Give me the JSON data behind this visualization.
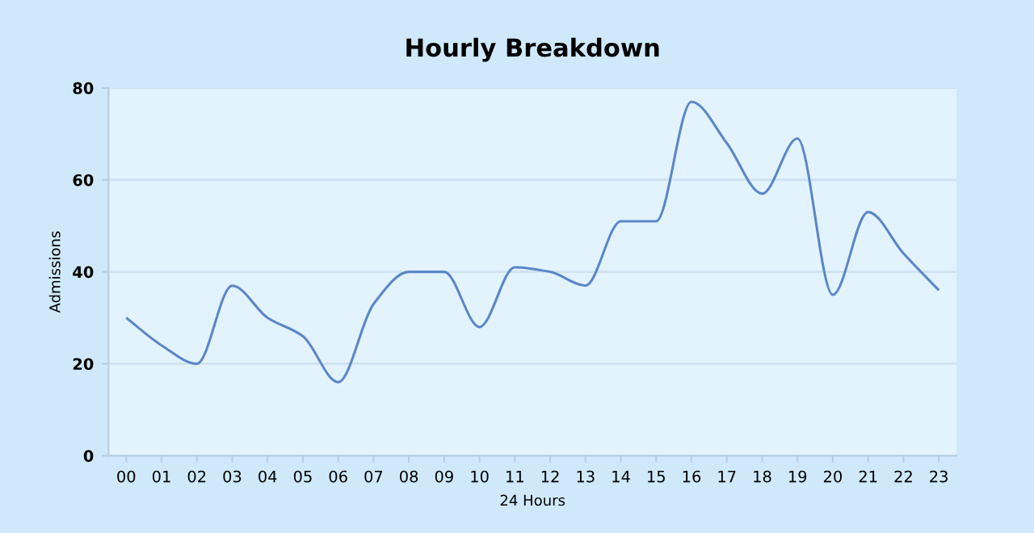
{
  "chart_data": {
    "type": "line",
    "title": "Hourly Breakdown",
    "xlabel": "24 Hours",
    "ylabel": "Admissions",
    "categories": [
      "00",
      "01",
      "02",
      "03",
      "04",
      "05",
      "06",
      "07",
      "08",
      "09",
      "10",
      "11",
      "12",
      "13",
      "14",
      "15",
      "16",
      "17",
      "18",
      "19",
      "20",
      "21",
      "22",
      "23"
    ],
    "series": [
      {
        "color": "#5b86c8",
        "values": [
          30,
          24,
          20,
          37,
          30,
          26,
          16,
          33,
          40,
          40,
          28,
          41,
          40,
          37,
          51,
          51,
          77,
          68,
          57,
          69,
          35,
          53,
          44,
          36
        ]
      }
    ],
    "ylim": [
      0,
      80
    ],
    "yticks": [
      0,
      20,
      40,
      60,
      80
    ],
    "grid": "y",
    "legend": false,
    "marker": "none",
    "line_style": "solid"
  }
}
